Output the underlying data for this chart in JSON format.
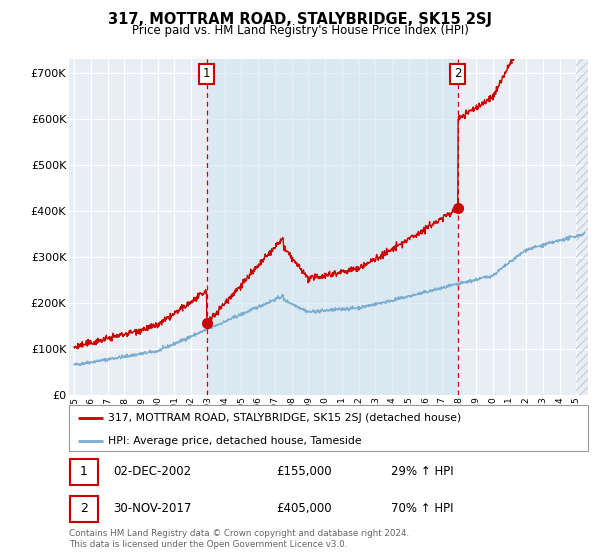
{
  "title": "317, MOTTRAM ROAD, STALYBRIDGE, SK15 2SJ",
  "subtitle": "Price paid vs. HM Land Registry's House Price Index (HPI)",
  "ylabel_ticks": [
    "£0",
    "£100K",
    "£200K",
    "£300K",
    "£400K",
    "£500K",
    "£600K",
    "£700K"
  ],
  "ytick_values": [
    0,
    100000,
    200000,
    300000,
    400000,
    500000,
    600000,
    700000
  ],
  "ylim": [
    0,
    730000
  ],
  "xlim_start": 1994.7,
  "xlim_end": 2025.7,
  "sale1_date": 2002.92,
  "sale1_price": 155000,
  "sale2_date": 2017.92,
  "sale2_price": 405000,
  "legend_line1": "317, MOTTRAM ROAD, STALYBRIDGE, SK15 2SJ (detached house)",
  "legend_line2": "HPI: Average price, detached house, Tameside",
  "table_row1": [
    "1",
    "02-DEC-2002",
    "£155,000",
    "29% ↑ HPI"
  ],
  "table_row2": [
    "2",
    "30-NOV-2017",
    "£405,000",
    "70% ↑ HPI"
  ],
  "footnote": "Contains HM Land Registry data © Crown copyright and database right 2024.\nThis data is licensed under the Open Government Licence v3.0.",
  "red_color": "#cc0000",
  "blue_color": "#7aadcf",
  "background_plot": "#e8eef4",
  "background_between": "#dbe8f0",
  "background_fig": "#ffffff",
  "grid_color": "#ffffff",
  "hatch_color": "#c8d4dc",
  "hatch_start": 2025.0
}
